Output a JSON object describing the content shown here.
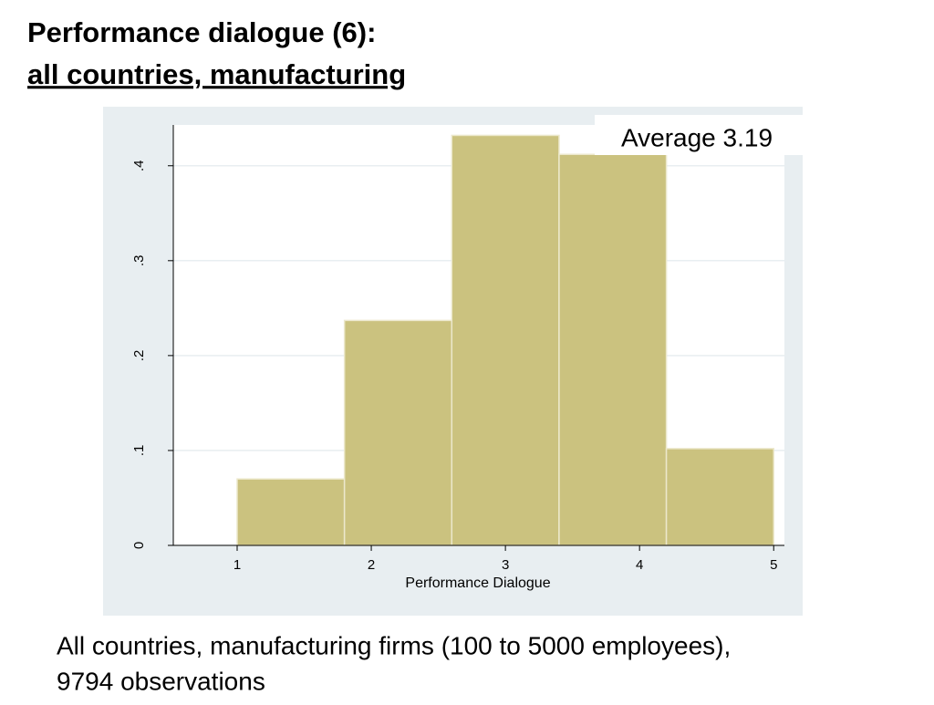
{
  "chart_data": {
    "type": "histogram",
    "title": "Performance dialogue (6):",
    "subtitle": "all countries, manufacturing",
    "x_label": "Performance Dialogue",
    "annotation": "Average 3.19",
    "caption": [
      "All countries, manufacturing firms (100 to 5000 employees),",
      "9794 observations"
    ],
    "bins": [
      1,
      1.8,
      2.6,
      3.4,
      4.2,
      5
    ],
    "values": [
      0.07,
      0.237,
      0.432,
      0.412,
      0.102
    ],
    "color": "#cbc27f",
    "xlim": [
      0.524,
      5.08
    ],
    "xticks": [
      1,
      2,
      3,
      4,
      5
    ],
    "ylim": [
      0,
      0.443
    ],
    "yticks": [
      0,
      {
        "value": 0.1,
        "label": ".1"
      },
      {
        "value": 0.2,
        "label": ".2"
      },
      {
        "value": 0.3,
        "label": ".3"
      },
      {
        "value": 0.4,
        "label": ".4"
      }
    ],
    "grid": true
  }
}
